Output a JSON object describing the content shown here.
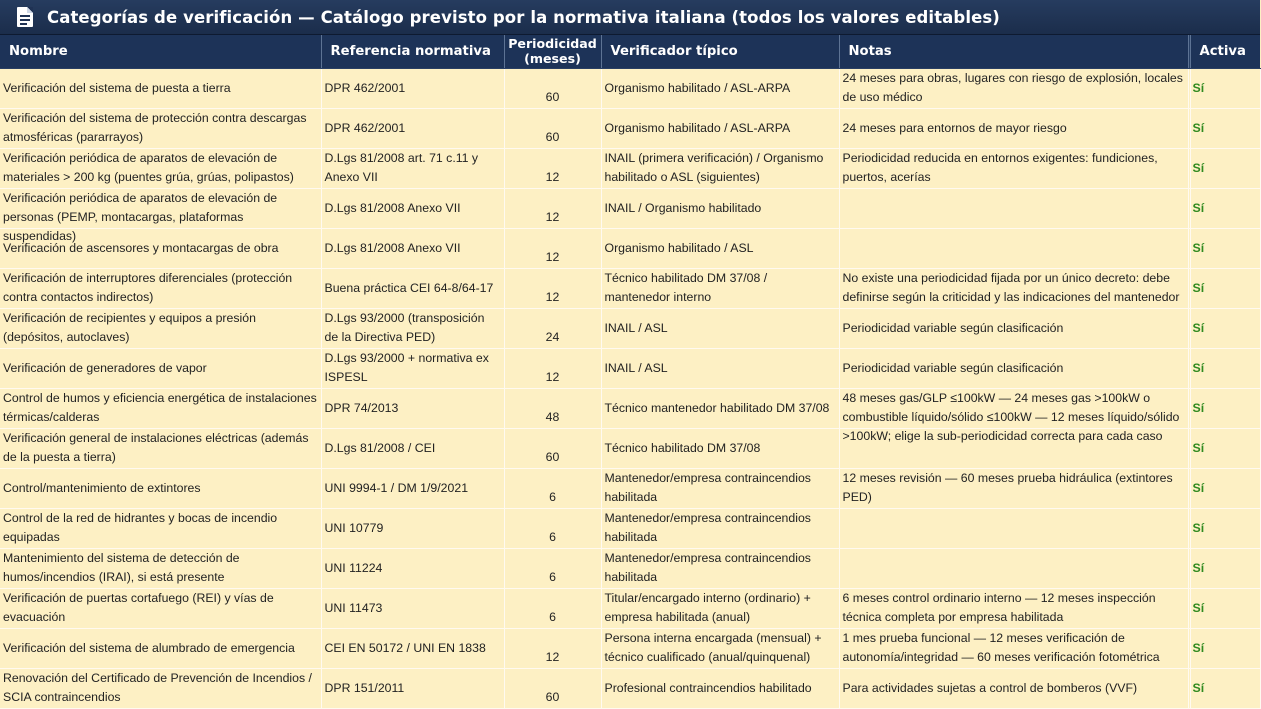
{
  "window": {
    "title": "Categorías de verificación — Catálogo previsto por la normativa italiana (todos los valores editables)",
    "icon": "document-icon"
  },
  "table": {
    "columns": {
      "name": "Nombre",
      "reference": "Referencia normativa",
      "period": "Periodicidad (meses)",
      "verifier": "Verificador típico",
      "notes": "Notas",
      "active": "Activa"
    },
    "rows": [
      {
        "name": "Verificación del sistema de puesta a tierra",
        "reference": "DPR 462/2001",
        "period": "60",
        "verifier": "Organismo habilitado / ASL-ARPA",
        "notes": "24 meses para obras, lugares con riesgo de explosión, locales de uso médico",
        "active": "Sí"
      },
      {
        "name": "Verificación del sistema de protección contra descargas atmosféricas (pararrayos)",
        "reference": "DPR 462/2001",
        "period": "60",
        "verifier": "Organismo habilitado / ASL-ARPA",
        "notes": "24 meses para entornos de mayor riesgo",
        "active": "Sí"
      },
      {
        "name": "Verificación periódica de aparatos de elevación de materiales > 200 kg (puentes grúa, grúas, polipastos)",
        "reference": "D.Lgs 81/2008 art. 71 c.11 y Anexo VII",
        "period": "12",
        "verifier": "INAIL (primera verificación) / Organismo habilitado o ASL (siguientes)",
        "notes": "Periodicidad reducida en entornos exigentes: fundiciones, puertos, acerías",
        "active": "Sí"
      },
      {
        "name": "Verificación periódica de aparatos de elevación de personas (PEMP, montacargas, plataformas suspendidas)",
        "reference": "D.Lgs 81/2008 Anexo VII",
        "period": "12",
        "verifier": "INAIL / Organismo habilitado",
        "notes": "",
        "active": "Sí"
      },
      {
        "name": "Verificación de ascensores y montacargas de obra",
        "reference": "D.Lgs 81/2008 Anexo VII",
        "period": "12",
        "verifier": "Organismo habilitado / ASL",
        "notes": "",
        "active": "Sí"
      },
      {
        "name": "Verificación de interruptores diferenciales (protección contra contactos indirectos)",
        "reference": "Buena práctica CEI 64-8/64-17",
        "period": "12",
        "verifier": "Técnico habilitado DM 37/08 / mantenedor interno",
        "notes": "No existe una periodicidad fijada por un único decreto: debe definirse según la criticidad y las indicaciones del mantenedor",
        "active": "Sí"
      },
      {
        "name": "Verificación de recipientes y equipos a presión (depósitos, autoclaves)",
        "reference": "D.Lgs 93/2000 (transposición de la Directiva PED)",
        "period": "24",
        "verifier": "INAIL / ASL",
        "notes": "Periodicidad variable según clasificación",
        "active": "Sí"
      },
      {
        "name": "Verificación de generadores de vapor",
        "reference": "D.Lgs 93/2000 + normativa ex ISPESL",
        "period": "12",
        "verifier": "INAIL / ASL",
        "notes": "Periodicidad variable según clasificación",
        "active": "Sí"
      },
      {
        "name": "Control de humos y eficiencia energética de instalaciones térmicas/calderas",
        "reference": "DPR 74/2013",
        "period": "48",
        "verifier": "Técnico mantenedor habilitado DM 37/08",
        "notes": "48 meses gas/GLP ≤100kW — 24 meses gas >100kW o combustible líquido/sólido ≤100kW — 12 meses líquido/sólido >100kW; elige la sub-periodicidad correcta para cada caso",
        "active": "Sí"
      },
      {
        "name": "Verificación general de instalaciones eléctricas (además de la puesta a tierra)",
        "reference": "D.Lgs 81/2008 / CEI",
        "period": "60",
        "verifier": "Técnico habilitado DM 37/08",
        "notes": "",
        "active": "Sí"
      },
      {
        "name": "Control/mantenimiento de extintores",
        "reference": "UNI 9994-1 / DM 1/9/2021",
        "period": "6",
        "verifier": "Mantenedor/empresa contraincendios habilitada",
        "notes": "12 meses revisión — 60 meses prueba hidráulica (extintores PED)",
        "active": "Sí"
      },
      {
        "name": "Control de la red de hidrantes y bocas de incendio equipadas",
        "reference": "UNI 10779",
        "period": "6",
        "verifier": "Mantenedor/empresa contraincendios habilitada",
        "notes": "",
        "active": "Sí"
      },
      {
        "name": "Mantenimiento del sistema de detección de humos/incendios (IRAI), si está presente",
        "reference": "UNI 11224",
        "period": "6",
        "verifier": "Mantenedor/empresa contraincendios habilitada",
        "notes": "",
        "active": "Sí"
      },
      {
        "name": "Verificación de puertas cortafuego (REI) y vías de evacuación",
        "reference": "UNI 11473",
        "period": "6",
        "verifier": "Titular/encargado interno (ordinario) + empresa habilitada (anual)",
        "notes": "6 meses control ordinario interno — 12 meses inspección técnica completa por empresa habilitada",
        "active": "Sí"
      },
      {
        "name": "Verificación del sistema de alumbrado de emergencia",
        "reference": "CEI EN 50172 / UNI EN 1838",
        "period": "12",
        "verifier": "Persona interna encargada (mensual) + técnico cualificado (anual/quinquenal)",
        "notes": "1 mes prueba funcional — 12 meses verificación de autonomía/integridad — 60 meses verificación fotométrica",
        "active": "Sí"
      },
      {
        "name": "Renovación del Certificado de Prevención de Incendios / SCIA contraincendios",
        "reference": "DPR 151/2011",
        "period": "60",
        "verifier": "Profesional contraincendios habilitado",
        "notes": "Para actividades sujetas a control de bomberos (VVF)",
        "active": "Sí"
      }
    ]
  }
}
